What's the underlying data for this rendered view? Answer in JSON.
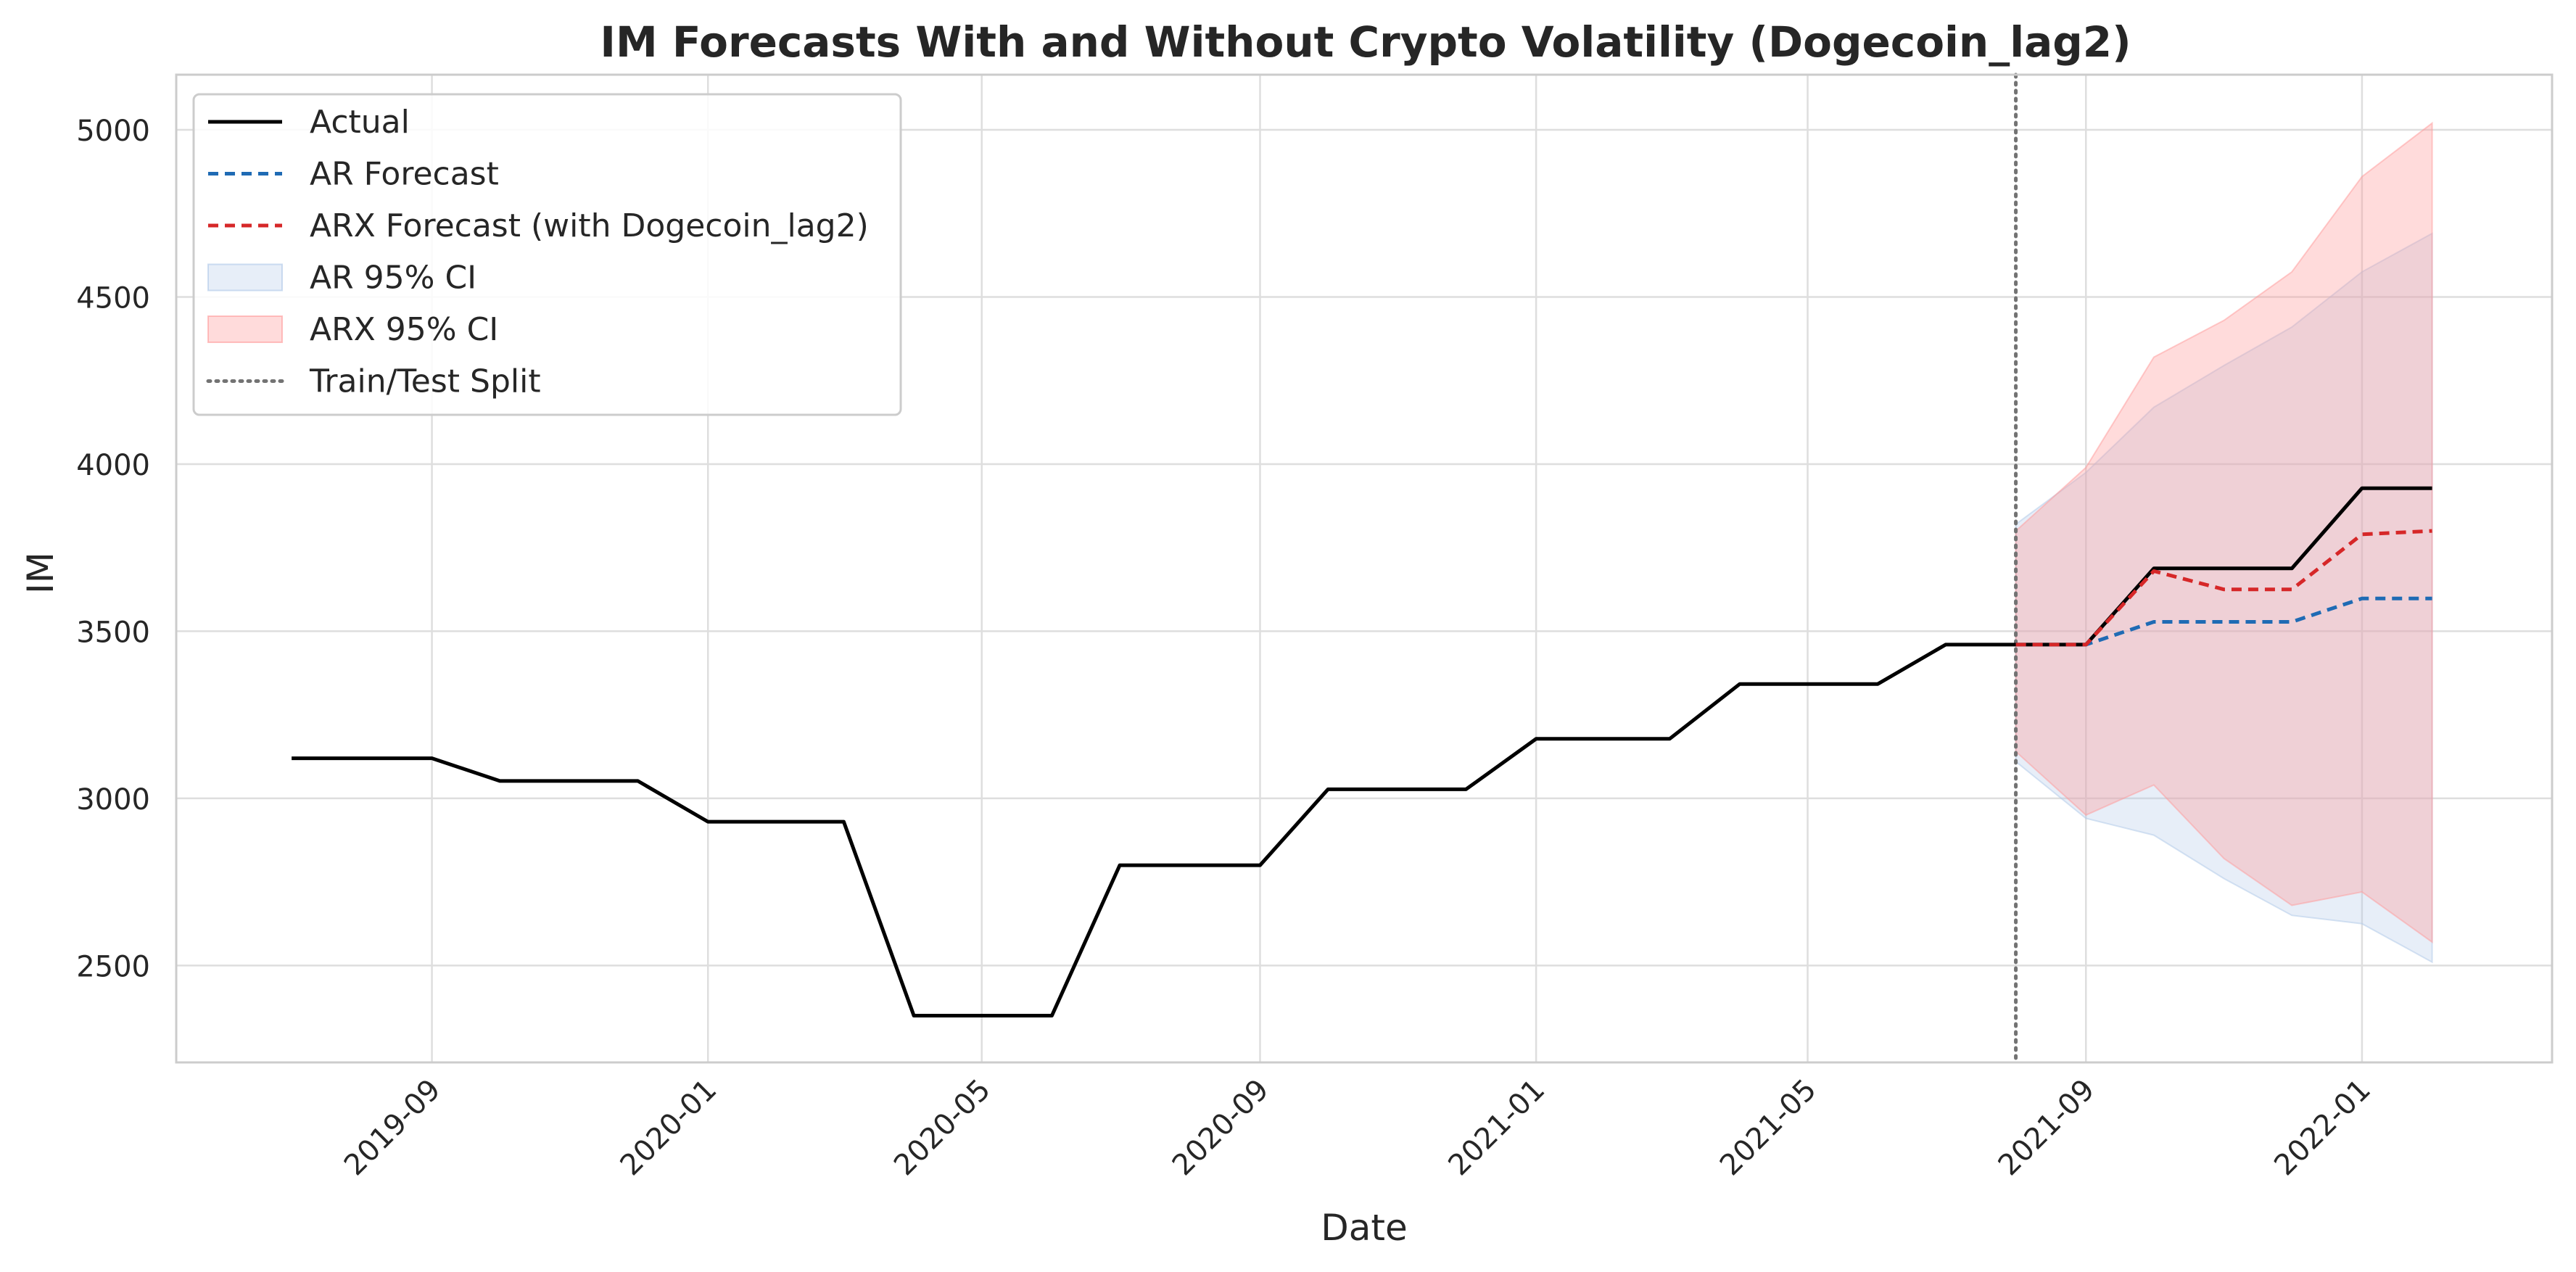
{
  "chart_data": {
    "type": "line",
    "title": "IM Forecasts With and Without Crypto Volatility (Dogecoin_lag2)",
    "xlabel": "Date",
    "ylabel": "IM",
    "x_axis_type": "date",
    "xlim": [
      "2019-05-11",
      "2022-03-26"
    ],
    "ylim": [
      2210,
      5165
    ],
    "grid": true,
    "legend_position": "top-left",
    "x_ticks": [
      "2019-09",
      "2020-01",
      "2020-05",
      "2020-09",
      "2021-01",
      "2021-05",
      "2021-09",
      "2022-01"
    ],
    "y_ticks": [
      2500,
      3000,
      3500,
      4000,
      4500,
      5000
    ],
    "split_date": "2021-08-01",
    "series": [
      {
        "name": "Actual",
        "kind": "line",
        "style": "solid",
        "color": "#000000",
        "x": [
          "2019-07-01",
          "2019-08-01",
          "2019-09-01",
          "2019-10-01",
          "2019-11-01",
          "2019-12-01",
          "2020-01-01",
          "2020-02-01",
          "2020-03-01",
          "2020-04-01",
          "2020-05-01",
          "2020-06-01",
          "2020-07-01",
          "2020-08-01",
          "2020-09-01",
          "2020-10-01",
          "2020-11-01",
          "2020-12-01",
          "2021-01-01",
          "2021-02-01",
          "2021-03-01",
          "2021-04-01",
          "2021-05-01",
          "2021-06-01",
          "2021-07-01",
          "2021-08-01",
          "2021-09-01",
          "2021-10-01",
          "2021-11-01",
          "2021-12-01",
          "2022-01-01",
          "2022-02-01"
        ],
        "y": [
          3120,
          3120,
          3120,
          3052,
          3052,
          3052,
          2930,
          2930,
          2930,
          2350,
          2350,
          2350,
          2800,
          2800,
          2800,
          3027,
          3027,
          3027,
          3178,
          3178,
          3178,
          3342,
          3342,
          3342,
          3460,
          3460,
          3460,
          3688,
          3688,
          3688,
          3928,
          3928
        ]
      },
      {
        "name": "AR Forecast",
        "kind": "line",
        "style": "dashed",
        "color": "#1f6bb4",
        "x": [
          "2021-08-01",
          "2021-09-01",
          "2021-10-01",
          "2021-11-01",
          "2021-12-01",
          "2022-01-01",
          "2022-02-01"
        ],
        "y": [
          3460,
          3460,
          3528,
          3528,
          3528,
          3598,
          3598
        ]
      },
      {
        "name": "ARX Forecast (with Dogecoin_lag2)",
        "kind": "line",
        "style": "dashed",
        "color": "#d62728",
        "x": [
          "2021-08-01",
          "2021-09-01",
          "2021-10-01",
          "2021-11-01",
          "2021-12-01",
          "2022-01-01",
          "2022-02-01"
        ],
        "y": [
          3460,
          3460,
          3680,
          3625,
          3625,
          3790,
          3800
        ]
      },
      {
        "name": "AR 95% CI",
        "kind": "band",
        "color": "#aec7e8",
        "opacity": 0.3,
        "x": [
          "2021-08-01",
          "2021-09-01",
          "2021-10-01",
          "2021-11-01",
          "2021-12-01",
          "2022-01-01",
          "2022-02-01"
        ],
        "lower": [
          3110,
          2940,
          2890,
          2760,
          2650,
          2625,
          2510
        ],
        "upper": [
          3820,
          3975,
          4170,
          4295,
          4410,
          4575,
          4690
        ]
      },
      {
        "name": "ARX 95% CI",
        "kind": "band",
        "color": "#ff9999",
        "opacity": 0.35,
        "x": [
          "2021-08-01",
          "2021-09-01",
          "2021-10-01",
          "2021-11-01",
          "2021-12-01",
          "2022-01-01",
          "2022-02-01"
        ],
        "lower": [
          3140,
          2950,
          3040,
          2820,
          2680,
          2720,
          2570
        ],
        "upper": [
          3800,
          3990,
          4320,
          4430,
          4575,
          4860,
          5020
        ]
      },
      {
        "name": "Train/Test Split",
        "kind": "vline",
        "style": "dotted",
        "color": "#737373",
        "x": "2021-08-01"
      }
    ],
    "legend": [
      "Actual",
      "AR Forecast",
      "ARX Forecast (with Dogecoin_lag2)",
      "AR 95% CI",
      "ARX 95% CI",
      "Train/Test Split"
    ]
  }
}
